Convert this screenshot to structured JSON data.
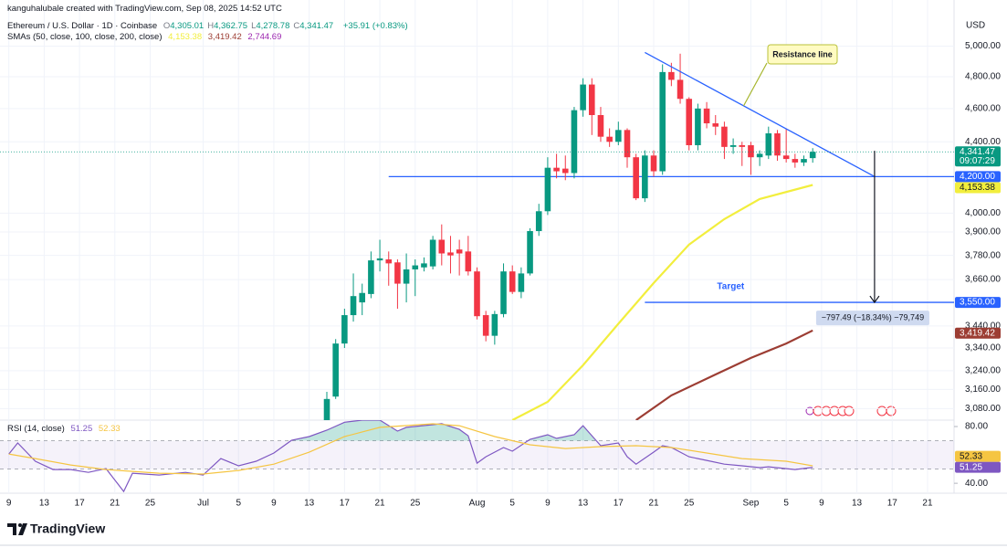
{
  "header": {
    "credit": "kanguhalubale created with TradingView.com, Sep 08, 2025 14:52 UTC",
    "symbol": "Ethereum / U.S. Dollar · 1D · Coinbase",
    "ohlc": [
      {
        "key": "O",
        "text": "4,305.01"
      },
      {
        "key": "H",
        "text": "4,362.75"
      },
      {
        "key": "L",
        "text": "4,278.78"
      },
      {
        "key": "C",
        "text": "4,341.47"
      }
    ],
    "change": "+35.91 (+0.83%)",
    "sma_title": "SMAs (50, close, 100, close, 200, close)",
    "sma_200": {
      "text": "2,744.69",
      "color": "#9c27b0"
    },
    "currency": "USD"
  },
  "footer": {
    "logo": "TradingView"
  },
  "chart_data": [
    {
      "type": "candlestick",
      "x": [
        "2025-07-15",
        "2025-07-16",
        "2025-07-17",
        "2025-07-18",
        "2025-07-19",
        "2025-07-20",
        "2025-07-21",
        "2025-07-22",
        "2025-07-23",
        "2025-07-24",
        "2025-07-25",
        "2025-07-26",
        "2025-07-27",
        "2025-07-28",
        "2025-07-29",
        "2025-07-30",
        "2025-07-31",
        "2025-08-01",
        "2025-08-02",
        "2025-08-03",
        "2025-08-04",
        "2025-08-05",
        "2025-08-06",
        "2025-08-07",
        "2025-08-08",
        "2025-08-09",
        "2025-08-10",
        "2025-08-11",
        "2025-08-12",
        "2025-08-13",
        "2025-08-14",
        "2025-08-15",
        "2025-08-16",
        "2025-08-17",
        "2025-08-18",
        "2025-08-19",
        "2025-08-20",
        "2025-08-21",
        "2025-08-22",
        "2025-08-23",
        "2025-08-24",
        "2025-08-25",
        "2025-08-26",
        "2025-08-27",
        "2025-08-28",
        "2025-08-29",
        "2025-08-30",
        "2025-08-31",
        "2025-09-01",
        "2025-09-02",
        "2025-09-03",
        "2025-09-04",
        "2025-09-05",
        "2025-09-06",
        "2025-09-07",
        "2025-09-08"
      ],
      "open": [
        3010,
        3130,
        3360,
        3490,
        3550,
        3590,
        3755,
        3760,
        3745,
        3640,
        3710,
        3720,
        3725,
        3860,
        3795,
        3810,
        3800,
        3700,
        3490,
        3395,
        3495,
        3700,
        3600,
        3690,
        3905,
        4010,
        4250,
        4245,
        4220,
        4590,
        4750,
        4560,
        4430,
        4400,
        4470,
        4310,
        4080,
        4320,
        4230,
        4830,
        4780,
        4660,
        4380,
        4600,
        4510,
        4490,
        4370,
        4380,
        4380,
        4310,
        4320,
        4450,
        4320,
        4300,
        4280,
        4305.01
      ],
      "high": [
        3150,
        3380,
        3520,
        3690,
        3640,
        3800,
        3860,
        3800,
        3760,
        3790,
        3760,
        3770,
        3880,
        3940,
        3880,
        3860,
        3880,
        3720,
        3510,
        3510,
        3740,
        3730,
        3720,
        3920,
        4050,
        4310,
        4330,
        4320,
        4610,
        4790,
        4790,
        4610,
        4480,
        4520,
        4480,
        4330,
        4350,
        4350,
        4880,
        4890,
        4950,
        4670,
        4630,
        4640,
        4560,
        4520,
        4420,
        4400,
        4400,
        4350,
        4490,
        4470,
        4480,
        4330,
        4320,
        4362.75
      ],
      "low": [
        2990,
        3120,
        3340,
        3460,
        3490,
        3570,
        3700,
        3630,
        3520,
        3550,
        3580,
        3700,
        3710,
        3730,
        3690,
        3680,
        3680,
        3470,
        3370,
        3355,
        3480,
        3590,
        3570,
        3680,
        3880,
        3990,
        4190,
        4180,
        4190,
        4550,
        4440,
        4400,
        4370,
        4380,
        4250,
        4070,
        4060,
        4200,
        4210,
        4740,
        4630,
        4350,
        4350,
        4480,
        4440,
        4300,
        4330,
        4260,
        4210,
        4260,
        4300,
        4290,
        4280,
        4250,
        4260,
        4278.78
      ],
      "close": [
        3120,
        3360,
        3490,
        3580,
        3595,
        3755,
        3765,
        3740,
        3640,
        3710,
        3730,
        3740,
        3860,
        3790,
        3780,
        3790,
        3700,
        3485,
        3395,
        3495,
        3700,
        3600,
        3690,
        3905,
        4010,
        4250,
        4230,
        4220,
        4590,
        4750,
        4560,
        4430,
        4400,
        4470,
        4310,
        4080,
        4320,
        4230,
        4830,
        4780,
        4660,
        4380,
        4600,
        4510,
        4490,
        4370,
        4380,
        4370,
        4310,
        4330,
        4450,
        4320,
        4300,
        4280,
        4300,
        4341.47
      ],
      "up_color": "#089981",
      "down_color": "#f23645",
      "last_price_color": "#089981",
      "countdown": "09:07:29",
      "xlim": [
        "2025-06-08",
        "2025-09-24"
      ],
      "ylim": [
        3033,
        5190
      ],
      "log_scale": true,
      "grid": true,
      "yticks": [
        {
          "value": 5000,
          "label": "5,000.00"
        },
        {
          "value": 4800,
          "label": "4,800.00"
        },
        {
          "value": 4600,
          "label": "4,600.00"
        },
        {
          "value": 4400,
          "label": "4,400.00"
        },
        {
          "value": 4000,
          "label": "4,000.00"
        },
        {
          "value": 3900,
          "label": "3,900.00"
        },
        {
          "value": 3780,
          "label": "3,780.00"
        },
        {
          "value": 3660,
          "label": "3,660.00"
        },
        {
          "value": 3440,
          "label": "3,440.00"
        },
        {
          "value": 3340,
          "label": "3,340.00"
        },
        {
          "value": 3240,
          "label": "3,240.00"
        },
        {
          "value": 3160,
          "label": "3,160.00"
        },
        {
          "value": 3080,
          "label": "3,080.00"
        }
      ],
      "series": [
        {
          "color": "#f2ee3d",
          "text_color": "#131722",
          "end_label": "4,153.38",
          "x": [
            "2025-08-05",
            "2025-08-09",
            "2025-08-13",
            "2025-08-17",
            "2025-08-21",
            "2025-08-25",
            "2025-08-29",
            "2025-09-02",
            "2025-09-08"
          ],
          "values": [
            3033,
            3108,
            3264,
            3450,
            3643,
            3835,
            3968,
            4076,
            4153.38
          ]
        },
        {
          "color": "#9c3d33",
          "text_color": "#ffffff",
          "end_label": "3,419.42",
          "x": [
            "2025-08-19",
            "2025-08-23",
            "2025-08-28",
            "2025-09-01",
            "2025-09-05",
            "2025-09-08"
          ],
          "values": [
            3033,
            3135,
            3224,
            3296,
            3360,
            3419.42
          ]
        }
      ],
      "levels": [
        {
          "value": 4200,
          "label": "4,200.00",
          "from": "2025-07-22",
          "color": "#2962ff"
        },
        {
          "value": 3550,
          "label": "3,550.00",
          "from": "2025-08-20",
          "color": "#2962ff",
          "text": "Target"
        }
      ],
      "trendline": {
        "points": [
          [
            "2025-08-20",
            4958
          ],
          [
            "2025-09-15",
            4200
          ]
        ],
        "label": "Resistance line",
        "color": "#2962ff"
      },
      "arrow": {
        "date": "2025-09-15",
        "from": 4347.49,
        "to": 3550,
        "label": "−797.49 (−18.34%) −79,749"
      }
    },
    {
      "type": "line",
      "title": "RSI (14, close)",
      "xlim": [
        "2025-06-08",
        "2025-09-24"
      ],
      "ylim": [
        33,
        84.5
      ],
      "yticks": [
        {
          "value": 80,
          "label": "80.00"
        },
        {
          "value": 40,
          "label": "40.00"
        }
      ],
      "bands": [
        70,
        50
      ],
      "overbought_color": "#089981",
      "xticks": [
        {
          "value": "2025-06-09",
          "label": "9"
        },
        {
          "value": "2025-06-13",
          "label": "13"
        },
        {
          "value": "2025-06-17",
          "label": "17"
        },
        {
          "value": "2025-06-21",
          "label": "21"
        },
        {
          "value": "2025-06-25",
          "label": "25"
        },
        {
          "value": "2025-07-01",
          "label": "Jul"
        },
        {
          "value": "2025-07-05",
          "label": "5"
        },
        {
          "value": "2025-07-09",
          "label": "9"
        },
        {
          "value": "2025-07-13",
          "label": "13"
        },
        {
          "value": "2025-07-17",
          "label": "17"
        },
        {
          "value": "2025-07-21",
          "label": "21"
        },
        {
          "value": "2025-07-25",
          "label": "25"
        },
        {
          "value": "2025-08-01",
          "label": "Aug"
        },
        {
          "value": "2025-08-05",
          "label": "5"
        },
        {
          "value": "2025-08-09",
          "label": "9"
        },
        {
          "value": "2025-08-13",
          "label": "13"
        },
        {
          "value": "2025-08-17",
          "label": "17"
        },
        {
          "value": "2025-08-21",
          "label": "21"
        },
        {
          "value": "2025-08-25",
          "label": "25"
        },
        {
          "value": "2025-09-01",
          "label": "Sep"
        },
        {
          "value": "2025-09-05",
          "label": "5"
        },
        {
          "value": "2025-09-09",
          "label": "9"
        },
        {
          "value": "2025-09-13",
          "label": "13"
        },
        {
          "value": "2025-09-17",
          "label": "17"
        },
        {
          "value": "2025-09-21",
          "label": "21"
        }
      ],
      "series": [
        {
          "color": "#7e57c2",
          "text_color": "#ffffff",
          "end_label": "51.25",
          "x": [
            "2025-06-09",
            "2025-06-10",
            "2025-06-12",
            "2025-06-14",
            "2025-06-16",
            "2025-06-18",
            "2025-06-20",
            "2025-06-22",
            "2025-06-23",
            "2025-06-26",
            "2025-06-29",
            "2025-07-01",
            "2025-07-03",
            "2025-07-05",
            "2025-07-07",
            "2025-07-09",
            "2025-07-11",
            "2025-07-13",
            "2025-07-15",
            "2025-07-17",
            "2025-07-19",
            "2025-07-21",
            "2025-07-23",
            "2025-07-24",
            "2025-07-27",
            "2025-07-28",
            "2025-07-30",
            "2025-07-31",
            "2025-08-01",
            "2025-08-02",
            "2025-08-04",
            "2025-08-05",
            "2025-08-07",
            "2025-08-09",
            "2025-08-10",
            "2025-08-12",
            "2025-08-13",
            "2025-08-15",
            "2025-08-17",
            "2025-08-18",
            "2025-08-19",
            "2025-08-21",
            "2025-08-22",
            "2025-08-23",
            "2025-08-25",
            "2025-08-27",
            "2025-08-29",
            "2025-08-31",
            "2025-09-02",
            "2025-09-03",
            "2025-09-05",
            "2025-09-06",
            "2025-09-08"
          ],
          "values": [
            60.6,
            68.4,
            55.5,
            49.7,
            49.7,
            47.7,
            50.3,
            34.2,
            47.1,
            45.8,
            47.7,
            45.8,
            57.4,
            52.3,
            55.5,
            61.3,
            70.3,
            72.9,
            77.4,
            83,
            84.5,
            84.5,
            76.8,
            79.4,
            81.3,
            82,
            78,
            73.5,
            54.2,
            58.7,
            65.2,
            62.6,
            71,
            74.2,
            71.6,
            74.2,
            80.6,
            66.5,
            68.4,
            58.7,
            53.5,
            62,
            66.5,
            65.2,
            58.7,
            56.1,
            53.5,
            52.3,
            51,
            51.6,
            50.3,
            49.7,
            51.25
          ]
        },
        {
          "color": "#f5c542",
          "text_color": "#131722",
          "end_label": "52.33",
          "x": [
            "2025-06-09",
            "2025-06-12",
            "2025-06-16",
            "2025-06-20",
            "2025-06-26",
            "2025-07-01",
            "2025-07-05",
            "2025-07-09",
            "2025-07-13",
            "2025-07-17",
            "2025-07-21",
            "2025-07-27",
            "2025-07-30",
            "2025-08-03",
            "2025-08-07",
            "2025-08-11",
            "2025-08-15",
            "2025-08-19",
            "2025-08-23",
            "2025-08-27",
            "2025-08-31",
            "2025-09-05",
            "2025-09-08"
          ],
          "values": [
            60.6,
            57.4,
            52.9,
            49.7,
            47.1,
            46.5,
            49,
            53.5,
            61.9,
            72.9,
            79.4,
            81.9,
            80.6,
            72.9,
            67.1,
            64.5,
            65.8,
            66.5,
            65.2,
            61.3,
            57.4,
            55.5,
            52.33
          ]
        }
      ]
    }
  ]
}
